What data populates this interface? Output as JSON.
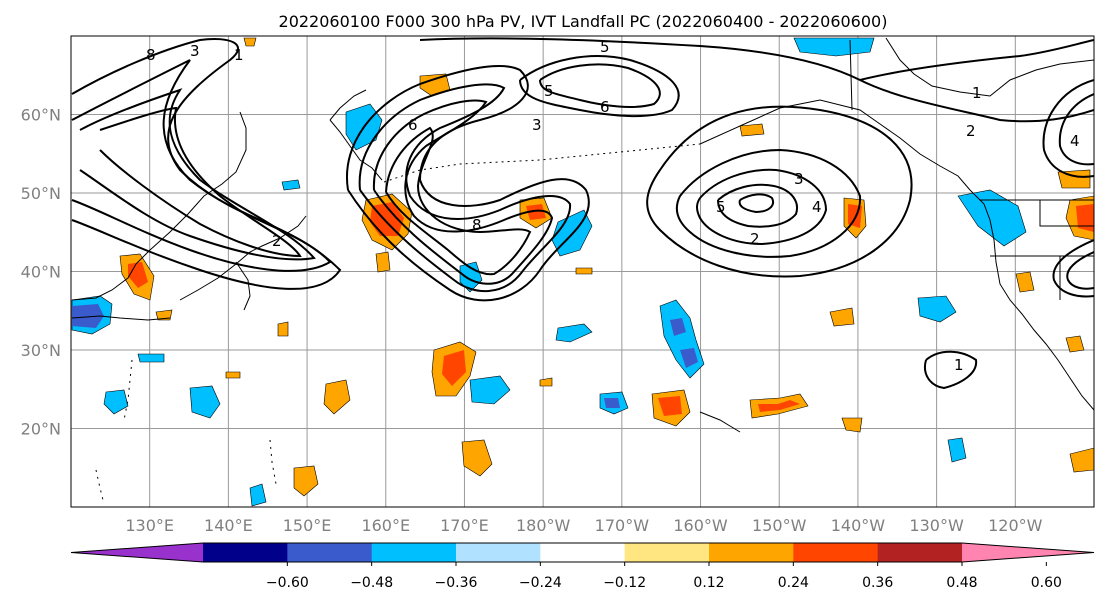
{
  "chart_data": {
    "type": "map",
    "title": "2022060100 F000 300 hPa PV, IVT Landfall PC (2022060400 - 2022060600)",
    "lat_ticks": [
      "20°N",
      "30°N",
      "40°N",
      "50°N",
      "60°N"
    ],
    "lon_ticks": [
      "130°E",
      "140°E",
      "150°E",
      "160°E",
      "170°E",
      "180°W",
      "170°W",
      "160°W",
      "150°W",
      "140°W",
      "130°W",
      "120°W"
    ],
    "lon_range": [
      120,
      250
    ],
    "lat_range": [
      10,
      70
    ],
    "grid": true,
    "colorbar": {
      "ticks": [
        "−0.60",
        "−0.48",
        "−0.36",
        "−0.24",
        "−0.12",
        "0.12",
        "0.24",
        "0.36",
        "0.48",
        "0.60"
      ],
      "tick_values": [
        -0.6,
        -0.48,
        -0.36,
        -0.24,
        -0.12,
        0.12,
        0.24,
        0.36,
        0.48,
        0.6
      ],
      "colors": [
        "#9932cc",
        "#00008b",
        "#3a5bcc",
        "#00bfff",
        "#b0e2ff",
        "#ffffff",
        "#ffe680",
        "#ffa500",
        "#ff4500",
        "#b22222",
        "#ff85b0"
      ],
      "extend": "both"
    },
    "pv_contour_labels": [
      "1",
      "2",
      "3",
      "4",
      "5",
      "6",
      "8"
    ]
  }
}
